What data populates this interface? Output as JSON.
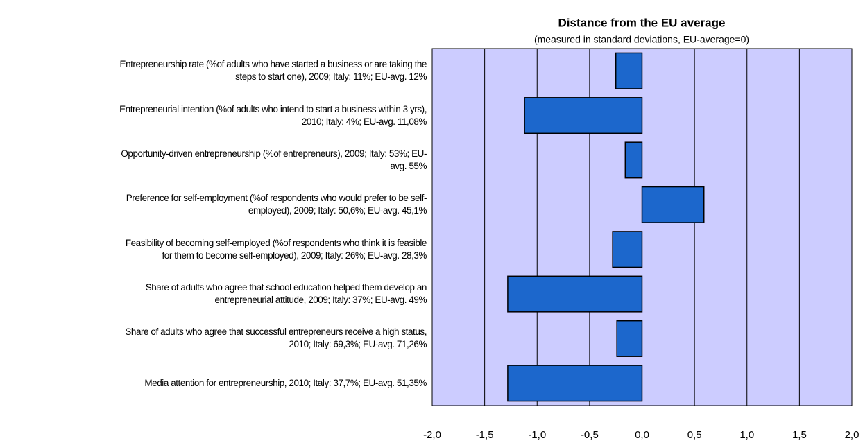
{
  "chart_data": {
    "type": "hbar",
    "title": "Distance from the EU average",
    "subtitle": "(measured in standard deviations, EU-average=0)",
    "categories": [
      "Entrepreneurship rate (%of adults who have started a business or are taking the\nsteps to start one), 2009; Italy: 11%; EU-avg. 12%",
      "Entrepreneurial intention (%of adults who intend to start a business within 3 yrs),\n2010; Italy: 4%; EU-avg. 11,08%",
      "Opportunity-driven entrepreneurship (%of entrepreneurs), 2009; Italy: 53%; EU-\navg. 55%",
      "Preference for self-employment (%of respondents who would prefer to be self-\nemployed), 2009; Italy: 50,6%; EU-avg. 45,1%",
      "Feasibility of becoming self-employed (%of respondents who think it is feasible\nfor them to become self-employed), 2009; Italy: 26%; EU-avg. 28,3%",
      "Share of adults who agree that school education helped them develop an\nentrepreneurial attitude, 2009; Italy: 37%; EU-avg. 49%",
      "Share of adults who agree that successful entrepreneurs receive a high status,\n2010; Italy: 69,3%; EU-avg. 71,26%",
      "Media attention for entrepreneurship, 2010; Italy: 37,7%; EU-avg. 51,35%"
    ],
    "values": [
      -0.25,
      -1.12,
      -0.16,
      0.59,
      -0.28,
      -1.28,
      -0.24,
      -1.28
    ],
    "color": "#1c67cc",
    "xlim": [
      -2,
      2
    ],
    "xticks": [
      {
        "value": -2,
        "label": "-2,0"
      },
      {
        "value": -1.5,
        "label": "-1,5"
      },
      {
        "value": -1,
        "label": "-1,0"
      },
      {
        "value": -0.5,
        "label": "-0,5"
      },
      {
        "value": 0,
        "label": "0,0"
      },
      {
        "value": 0.5,
        "label": "0,5"
      },
      {
        "value": 1,
        "label": "1,0"
      },
      {
        "value": 1.5,
        "label": "1,5"
      },
      {
        "value": 2,
        "label": "2,0"
      }
    ],
    "grid": true
  }
}
